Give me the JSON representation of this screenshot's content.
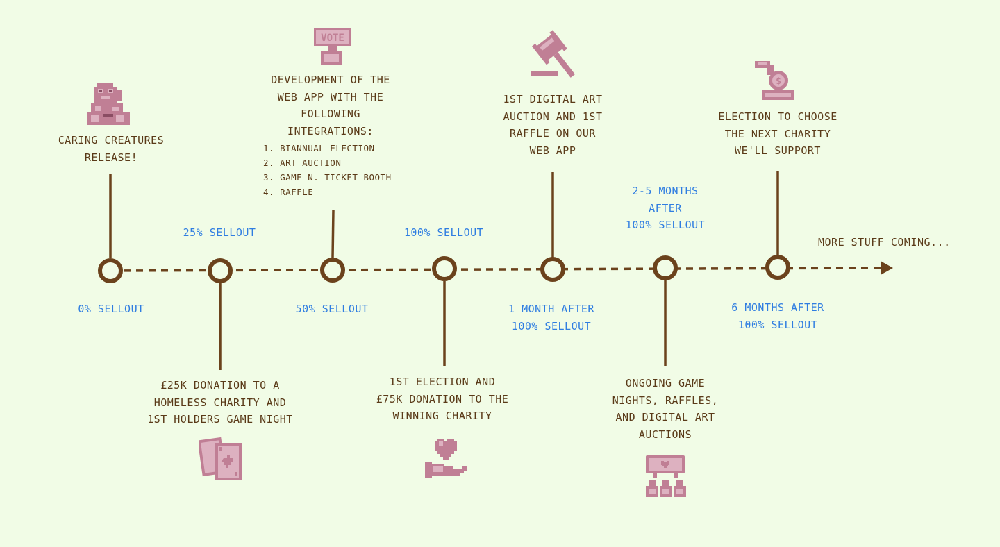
{
  "milestones": {
    "m0": {
      "stage": "0% SELLOUT",
      "event": [
        "CARING CREATURES",
        "RELEASE!"
      ],
      "icon": "pixel-creature-icon"
    },
    "m25": {
      "stage": "25% SELLOUT",
      "event": [
        "£25K DONATION TO A",
        "HOMELESS CHARITY AND",
        "1ST HOLDERS GAME NIGHT"
      ],
      "icon": "playing-cards-icon"
    },
    "m50": {
      "stage": "50% SELLOUT",
      "event": [
        "DEVELOPMENT OF THE",
        "WEB APP WITH THE",
        "FOLLOWING",
        "INTEGRATIONS:"
      ],
      "integrations": [
        "1. BIANNUAL ELECTION",
        "2. ART AUCTION",
        "3. GAME N. TICKET BOOTH",
        "4. RAFFLE"
      ],
      "icon": "vote-sign-icon",
      "icon_text": "VOTE"
    },
    "m100": {
      "stage": "100% SELLOUT",
      "event": [
        "1ST ELECTION AND",
        "£75K DONATION TO THE",
        "WINNING CHARITY"
      ],
      "icon": "heart-in-hand-icon"
    },
    "m1": {
      "stage": [
        "1 MONTH AFTER",
        "100% SELLOUT"
      ],
      "event": [
        "1ST DIGITAL ART",
        "AUCTION AND 1ST",
        "RAFFLE ON OUR",
        "WEB APP"
      ],
      "icon": "auction-gavel-icon"
    },
    "m25mo": {
      "stage": [
        "2-5 MONTHS",
        "AFTER",
        "100% SELLOUT"
      ],
      "event": [
        "ONGOING GAME",
        "NIGHTS, RAFFLES,",
        "AND DIGITAL ART",
        "AUCTIONS"
      ],
      "icon": "community-heart-icon"
    },
    "m6": {
      "stage": [
        "6 MONTHS AFTER",
        "100% SELLOUT"
      ],
      "event": [
        "ELECTION TO CHOOSE",
        "THE NEXT CHARITY",
        "WE'LL SUPPORT"
      ],
      "icon": "coin-donation-icon"
    }
  },
  "more": "MORE STUFF COMING...",
  "colors": {
    "background": "#f1fce6",
    "line": "#6b421c",
    "text": "#5a3a18",
    "stage": "#2f7de1",
    "icon_fill": "#c07f95",
    "icon_light": "#ddb1c0"
  }
}
